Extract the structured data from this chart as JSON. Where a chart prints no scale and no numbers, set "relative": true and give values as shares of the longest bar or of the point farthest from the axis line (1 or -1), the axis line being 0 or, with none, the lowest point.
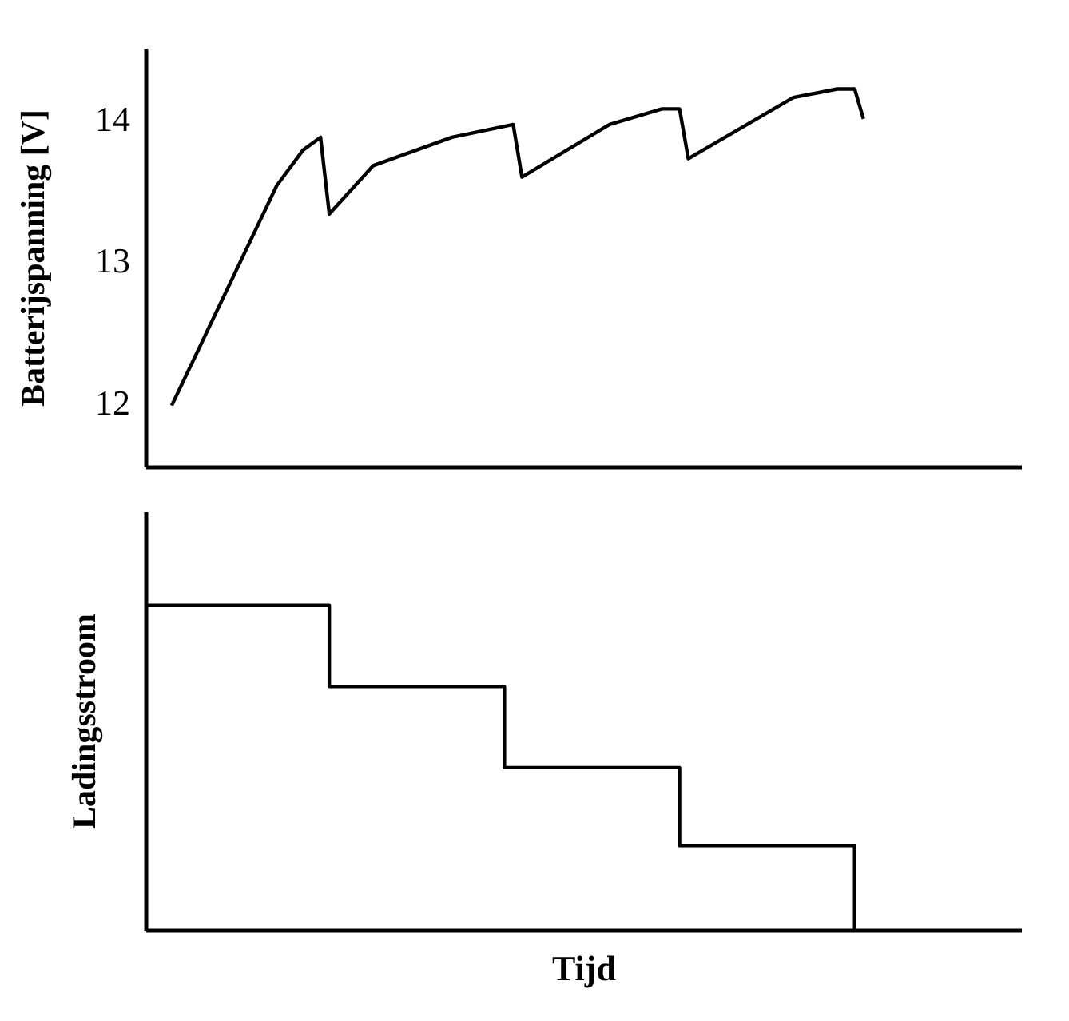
{
  "chart_data": [
    {
      "type": "line",
      "ylabel": "Batterijspanning [V]",
      "ylim": [
        11.55,
        14.5
      ],
      "yticks": [
        12,
        13,
        14
      ],
      "tick_labels": "y",
      "grid": false,
      "legend": false,
      "marker": "none",
      "line_style": "solid",
      "categories": [
        null,
        null,
        null,
        null,
        null,
        null,
        null,
        null,
        null,
        null,
        null,
        null,
        null,
        null,
        null,
        null,
        null,
        null,
        null,
        null,
        null,
        null,
        null,
        null,
        null,
        null,
        null,
        null,
        null,
        null,
        null,
        null,
        null,
        null,
        null,
        null,
        null,
        null,
        null,
        null,
        null,
        null,
        null,
        null,
        null,
        null,
        null,
        null,
        null,
        null,
        null,
        null,
        null,
        null,
        null,
        null,
        null,
        null,
        null,
        null,
        null,
        null,
        null,
        null,
        null,
        null,
        null,
        null,
        null,
        null,
        null,
        null,
        null,
        null,
        null,
        null,
        null,
        null,
        null,
        null,
        null,
        null,
        null,
        null,
        null,
        null,
        null,
        null,
        null,
        null,
        null,
        null,
        null,
        null,
        null,
        null,
        null,
        null,
        null,
        null,
        null
      ],
      "series": [
        {
          "color": "#000000",
          "values": [
            null,
            null,
            null,
            11.98,
            null,
            null,
            null,
            null,
            null,
            null,
            null,
            null,
            null,
            null,
            null,
            13.53,
            null,
            null,
            13.78,
            null,
            13.87,
            13.33,
            null,
            null,
            null,
            null,
            13.67,
            null,
            null,
            null,
            null,
            null,
            null,
            null,
            null,
            13.87,
            null,
            null,
            null,
            null,
            null,
            null,
            13.96,
            13.59,
            null,
            null,
            null,
            null,
            null,
            null,
            null,
            null,
            null,
            13.96,
            null,
            null,
            null,
            null,
            null,
            14.07,
            null,
            14.07,
            13.72,
            null,
            null,
            null,
            null,
            null,
            null,
            null,
            null,
            null,
            null,
            null,
            14.15,
            null,
            null,
            null,
            null,
            14.21,
            null,
            14.21,
            14.0,
            null,
            null,
            null,
            null,
            null,
            null,
            null,
            null,
            null,
            null,
            null,
            null,
            null,
            null,
            null,
            null,
            null,
            null
          ]
        }
      ]
    },
    {
      "type": "step",
      "xlabel": "Tijd",
      "ylabel": "Ladingsstroom",
      "relative": true,
      "tick_labels": false,
      "grid": false,
      "legend": false,
      "marker": "none",
      "line_style": "solid",
      "categories": [
        null,
        null,
        null,
        null,
        null,
        null,
        null,
        null,
        null,
        null,
        null,
        null,
        null,
        null,
        null,
        null,
        null,
        null,
        null,
        null,
        null,
        null,
        null,
        null,
        null,
        null,
        null,
        null,
        null,
        null,
        null,
        null,
        null,
        null,
        null,
        null,
        null,
        null,
        null,
        null,
        null,
        null,
        null,
        null,
        null,
        null,
        null,
        null,
        null,
        null,
        null,
        null,
        null,
        null,
        null,
        null,
        null,
        null,
        null,
        null,
        null,
        null,
        null,
        null,
        null,
        null,
        null,
        null,
        null,
        null,
        null,
        null,
        null,
        null,
        null,
        null,
        null,
        null,
        null,
        null,
        null,
        null,
        null,
        null,
        null,
        null,
        null,
        null,
        null,
        null,
        null,
        null,
        null,
        null,
        null,
        null,
        null,
        null,
        null,
        null,
        null
      ],
      "series": [
        {
          "color": "#000000",
          "values": [
            1,
            null,
            null,
            null,
            null,
            null,
            null,
            null,
            null,
            null,
            null,
            null,
            null,
            null,
            null,
            null,
            null,
            null,
            null,
            null,
            null,
            0.75,
            null,
            null,
            null,
            null,
            null,
            null,
            null,
            null,
            null,
            null,
            null,
            null,
            null,
            null,
            null,
            null,
            null,
            null,
            null,
            0.5,
            null,
            null,
            null,
            null,
            null,
            null,
            null,
            null,
            null,
            null,
            null,
            null,
            null,
            null,
            null,
            null,
            null,
            null,
            null,
            0.26,
            null,
            null,
            null,
            null,
            null,
            null,
            null,
            null,
            null,
            null,
            null,
            null,
            null,
            null,
            null,
            null,
            null,
            null,
            null,
            0,
            null,
            null,
            null,
            null,
            null,
            null,
            null,
            null,
            null,
            null,
            null,
            null,
            null,
            null,
            null,
            null,
            null,
            null,
            null
          ]
        }
      ]
    }
  ]
}
